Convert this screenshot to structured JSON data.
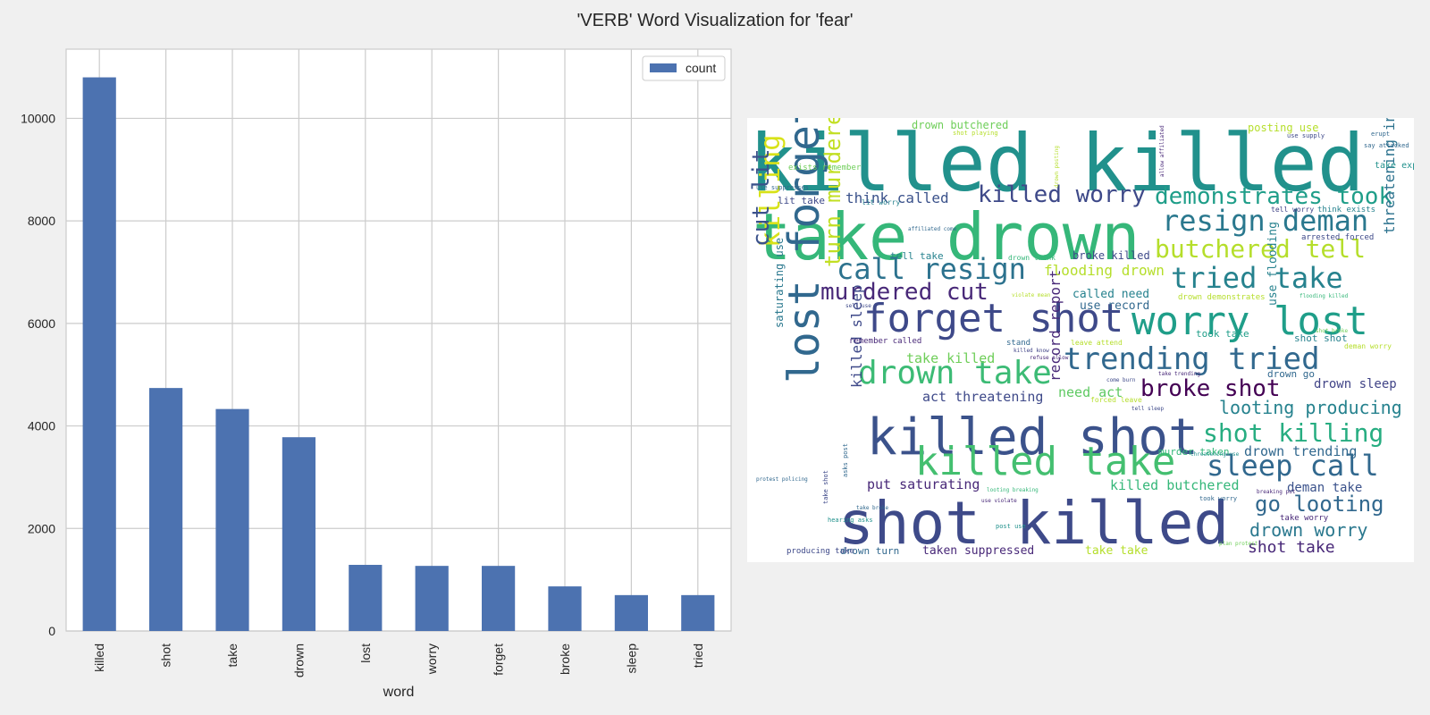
{
  "title": "'VERB' Word Visualization for 'fear'",
  "chart_data": {
    "type": "bar",
    "xlabel": "word",
    "ylabel": "",
    "categories": [
      "killed",
      "shot",
      "take",
      "drown",
      "lost",
      "worry",
      "forget",
      "broke",
      "sleep",
      "tried"
    ],
    "series": [
      {
        "name": "count",
        "values": [
          10800,
          4740,
          4330,
          3780,
          1290,
          1270,
          1270,
          870,
          700,
          700
        ]
      }
    ],
    "ylim": [
      0,
      11350
    ],
    "yticks": [
      0,
      2000,
      4000,
      6000,
      8000,
      10000
    ],
    "grid": true,
    "legend": "top-right",
    "bar_color": "#4c72b0"
  },
  "wordcloud": {
    "colors": [
      "#440154",
      "#482878",
      "#3e4989",
      "#31688e",
      "#26828e",
      "#1f9e89",
      "#35b779",
      "#6ece58",
      "#b5de2b",
      "#fde725"
    ],
    "words": [
      {
        "text": "killed killed",
        "size": 88,
        "color": "#21918c"
      },
      {
        "text": "take drown",
        "size": 72,
        "color": "#35b779"
      },
      {
        "text": "shot killed",
        "size": 66,
        "color": "#3e4a89"
      },
      {
        "text": "killed shot",
        "size": 56,
        "color": "#3b528b"
      },
      {
        "text": "lost forget",
        "size": 48,
        "color": "#31688e"
      },
      {
        "text": "forget shot",
        "size": 44,
        "color": "#3e4989"
      },
      {
        "text": "killed take",
        "size": 44,
        "color": "#44bf70"
      },
      {
        "text": "worry lost",
        "size": 44,
        "color": "#1f9e89"
      },
      {
        "text": "drown take",
        "size": 36,
        "color": "#3cbb75"
      },
      {
        "text": "trending tried",
        "size": 34,
        "color": "#31688e"
      },
      {
        "text": "call resign",
        "size": 32,
        "color": "#2c728e"
      },
      {
        "text": "tried take",
        "size": 32,
        "color": "#26828e"
      },
      {
        "text": "resign deman",
        "size": 32,
        "color": "#2a788e"
      },
      {
        "text": "sleep call",
        "size": 32,
        "color": "#31688e"
      },
      {
        "text": "killing broke",
        "size": 30,
        "color": "#d8e219"
      },
      {
        "text": "butchered tell",
        "size": 28,
        "color": "#b5de2b"
      },
      {
        "text": "shot killing",
        "size": 28,
        "color": "#27ad81"
      },
      {
        "text": "demonstrates took",
        "size": 26,
        "color": "#1f9e89"
      },
      {
        "text": "killed worry",
        "size": 26,
        "color": "#3e4989"
      },
      {
        "text": "broke shot",
        "size": 26,
        "color": "#440154"
      },
      {
        "text": "murdered cut",
        "size": 26,
        "color": "#482878"
      },
      {
        "text": "cut lit",
        "size": 26,
        "color": "#3b528b"
      },
      {
        "text": "turn murdered",
        "size": 24,
        "color": "#c2df23"
      },
      {
        "text": "go looting",
        "size": 24,
        "color": "#31688e"
      },
      {
        "text": "looting producing",
        "size": 20,
        "color": "#26828e"
      },
      {
        "text": "drown worry",
        "size": 20,
        "color": "#2a788e"
      },
      {
        "text": "shot take",
        "size": 18,
        "color": "#482878"
      },
      {
        "text": "threatening invade",
        "size": 16,
        "color": "#2c728e"
      },
      {
        "text": "killed sleep",
        "size": 16,
        "color": "#3e4989"
      },
      {
        "text": "record report",
        "size": 16,
        "color": "#482878"
      },
      {
        "text": "flooding drown",
        "size": 16,
        "color": "#b5de2b"
      },
      {
        "text": "think called",
        "size": 16,
        "color": "#3b528b"
      },
      {
        "text": "act threatening",
        "size": 15,
        "color": "#3e4989"
      },
      {
        "text": "drown trending",
        "size": 15,
        "color": "#31688e"
      },
      {
        "text": "killed butchered",
        "size": 15,
        "color": "#35b779"
      },
      {
        "text": "put saturating",
        "size": 15,
        "color": "#482878"
      },
      {
        "text": "take killed",
        "size": 15,
        "color": "#6ece58"
      },
      {
        "text": "need act",
        "size": 15,
        "color": "#5ec962"
      },
      {
        "text": "drown sleep",
        "size": 14,
        "color": "#414487"
      },
      {
        "text": "deman take",
        "size": 14,
        "color": "#3b528b"
      },
      {
        "text": "use flooding",
        "size": 13,
        "color": "#26828e"
      },
      {
        "text": "called need",
        "size": 13,
        "color": "#26828e"
      },
      {
        "text": "use record",
        "size": 13,
        "color": "#31688e"
      },
      {
        "text": "taken suppressed",
        "size": 13,
        "color": "#482878"
      },
      {
        "text": "take take",
        "size": 13,
        "color": "#b5de2b"
      },
      {
        "text": "saturating use",
        "size": 12,
        "color": "#2a788e"
      },
      {
        "text": "drown butchered",
        "size": 12,
        "color": "#6ece58"
      },
      {
        "text": "posting use",
        "size": 12,
        "color": "#b5de2b"
      },
      {
        "text": "broke killed",
        "size": 12,
        "color": "#3e4989"
      },
      {
        "text": "lit take",
        "size": 11,
        "color": "#3e4989"
      },
      {
        "text": "tell take",
        "size": 11,
        "color": "#26828e"
      },
      {
        "text": "shot shot",
        "size": 11,
        "color": "#26828e"
      },
      {
        "text": "took take",
        "size": 11,
        "color": "#1f9e89"
      },
      {
        "text": "drown go",
        "size": 11,
        "color": "#31688e"
      },
      {
        "text": "murder taken",
        "size": 11,
        "color": "#35b779"
      },
      {
        "text": "drown turn",
        "size": 11,
        "color": "#31688e"
      },
      {
        "text": "take expose",
        "size": 10,
        "color": "#21918c"
      },
      {
        "text": "remember called",
        "size": 9,
        "color": "#482878"
      },
      {
        "text": "drown demonstrates",
        "size": 9,
        "color": "#b5de2b"
      },
      {
        "text": "producing take",
        "size": 9,
        "color": "#3e4989"
      },
      {
        "text": "take worry",
        "size": 9,
        "color": "#482878"
      },
      {
        "text": "think exists",
        "size": 9,
        "color": "#26828e"
      },
      {
        "text": "arrested forced",
        "size": 9,
        "color": "#3e4989"
      },
      {
        "text": "exists remember",
        "size": 9,
        "color": "#6ece58"
      },
      {
        "text": "stand",
        "size": 9,
        "color": "#31688e"
      },
      {
        "text": "leave attend",
        "size": 8,
        "color": "#b5de2b"
      },
      {
        "text": "forced leave",
        "size": 8,
        "color": "#b5de2b"
      },
      {
        "text": "drown think",
        "size": 8,
        "color": "#35b779"
      },
      {
        "text": "deman worry",
        "size": 8,
        "color": "#b5de2b"
      },
      {
        "text": "tell worry",
        "size": 8,
        "color": "#414487"
      },
      {
        "text": "lit worry",
        "size": 8,
        "color": "#26828e"
      },
      {
        "text": "use suppresses",
        "size": 7,
        "color": "#31688e"
      },
      {
        "text": "shot playing",
        "size": 7,
        "color": "#b5de2b"
      },
      {
        "text": "say attacked",
        "size": 7,
        "color": "#31688e"
      },
      {
        "text": "erupt",
        "size": 7,
        "color": "#31688e"
      },
      {
        "text": "use supply",
        "size": 7,
        "color": "#3e4989"
      },
      {
        "text": "killed know",
        "size": 6,
        "color": "#414487"
      },
      {
        "text": "refuse allow",
        "size": 6,
        "color": "#482878"
      },
      {
        "text": "come burn",
        "size": 6,
        "color": "#3e4989"
      },
      {
        "text": "take trending",
        "size": 6,
        "color": "#482878"
      },
      {
        "text": "tell sleep",
        "size": 6,
        "color": "#3e4989"
      },
      {
        "text": "threatening use",
        "size": 6,
        "color": "#21918c"
      },
      {
        "text": "looting breaking",
        "size": 6,
        "color": "#35b779"
      },
      {
        "text": "use violate",
        "size": 6,
        "color": "#482878"
      },
      {
        "text": "hearing asks",
        "size": 7,
        "color": "#21918c"
      },
      {
        "text": "took worry",
        "size": 7,
        "color": "#31688e"
      },
      {
        "text": "post use",
        "size": 7,
        "color": "#21918c"
      },
      {
        "text": "plan protest",
        "size": 6,
        "color": "#6ece58"
      },
      {
        "text": "breaking put",
        "size": 6,
        "color": "#482878"
      },
      {
        "text": "flooding killed",
        "size": 6,
        "color": "#35b779"
      },
      {
        "text": "shot broke",
        "size": 6,
        "color": "#6ece58"
      },
      {
        "text": "affiliated come",
        "size": 6,
        "color": "#31688e"
      },
      {
        "text": "violate mean",
        "size": 6,
        "color": "#b5de2b"
      },
      {
        "text": "sell use",
        "size": 6,
        "color": "#3e4989"
      },
      {
        "text": "take broke",
        "size": 6,
        "color": "#31688e"
      },
      {
        "text": "drown posting",
        "size": 6,
        "color": "#b5de2b"
      },
      {
        "text": "allow affiliated",
        "size": 6,
        "color": "#482878"
      },
      {
        "text": "asks post",
        "size": 7,
        "color": "#31688e"
      },
      {
        "text": "take shot",
        "size": 7,
        "color": "#3e4989"
      },
      {
        "text": "protest policing",
        "size": 6,
        "color": "#31688e"
      }
    ]
  }
}
